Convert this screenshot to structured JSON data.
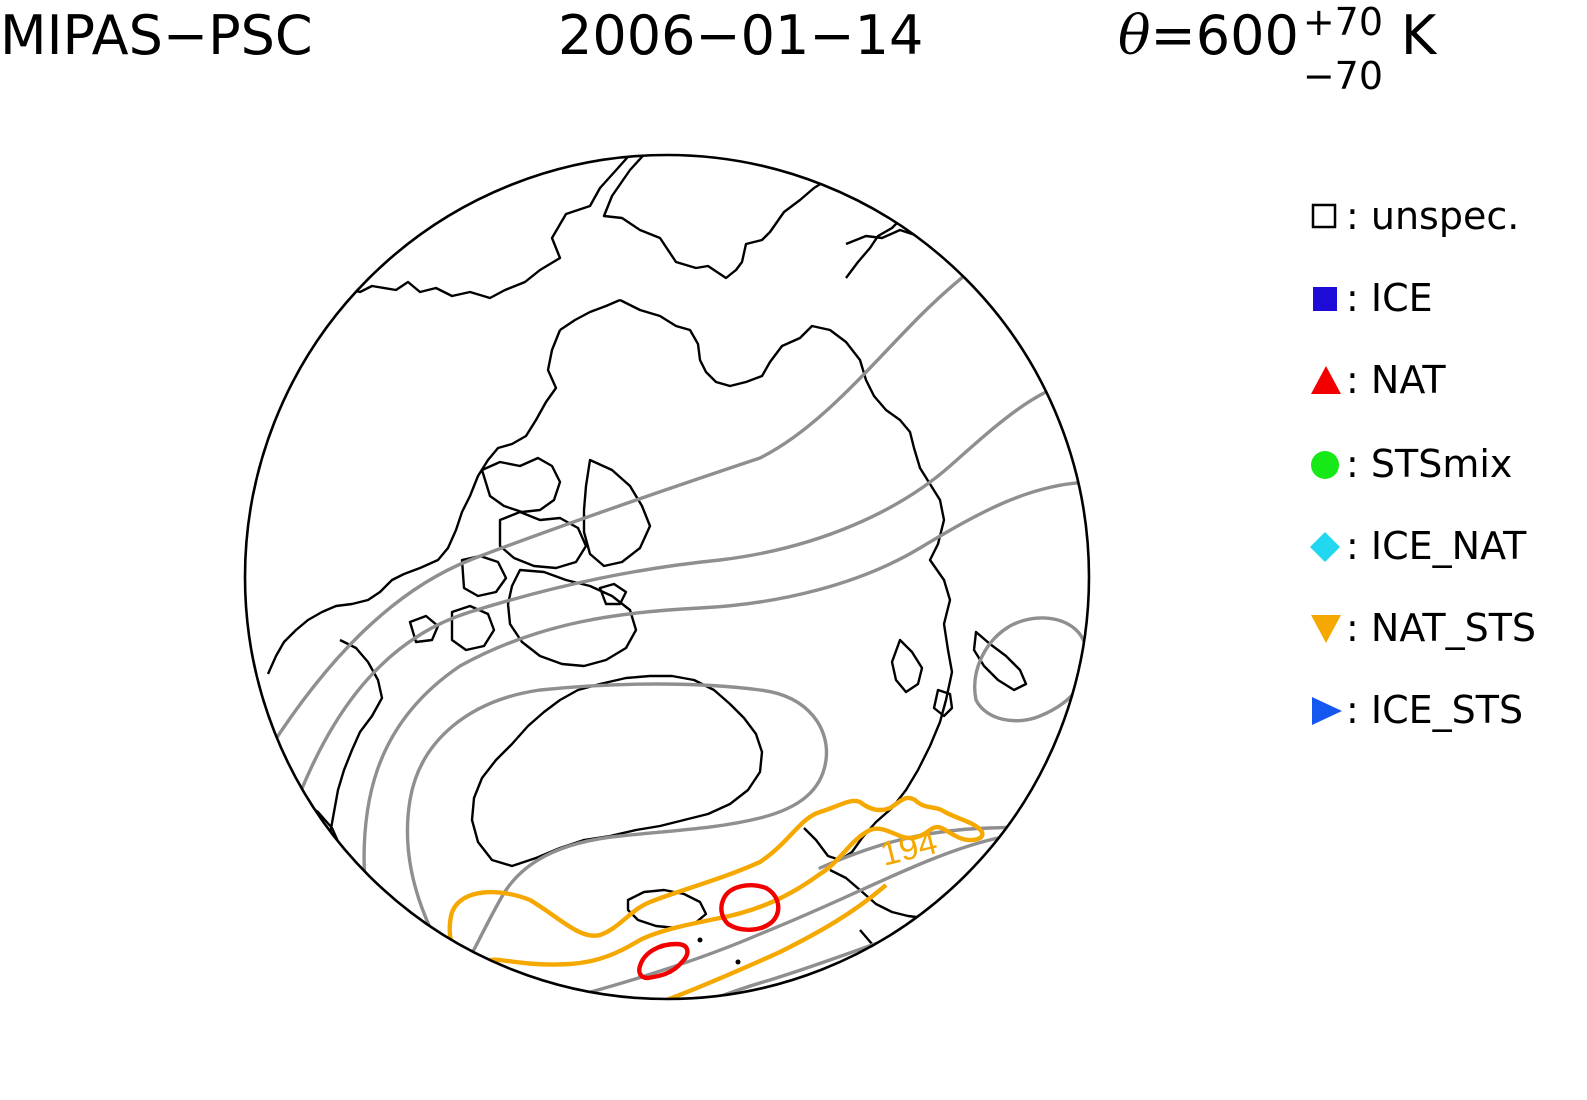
{
  "header": {
    "product": "MIPAS−PSC",
    "date": "2006−01−14",
    "theta_symbol": "θ",
    "theta_value": "=600",
    "theta_upper": "+70",
    "theta_lower": "−70",
    "theta_unit": "K"
  },
  "legend": [
    {
      "label": "unspec.",
      "symbol": "open-square",
      "color": "#000000"
    },
    {
      "label": "ICE",
      "symbol": "filled-square",
      "color": "#1e0bd8"
    },
    {
      "label": "NAT",
      "symbol": "triangle-up",
      "color": "#f20000"
    },
    {
      "label": "STSmix",
      "symbol": "circle",
      "color": "#17e817"
    },
    {
      "label": "ICE_NAT",
      "symbol": "diamond",
      "color": "#22d8f0"
    },
    {
      "label": "NAT_STS",
      "symbol": "triangle-down",
      "color": "#f5a800"
    },
    {
      "label": "ICE_STS",
      "symbol": "triangle-right",
      "color": "#1458f0"
    }
  ],
  "map": {
    "projection": "north polar stereographic",
    "contour_label": "194",
    "colors": {
      "coast": "#000000",
      "isoline": "#8f8f8f",
      "nat_sts_contour": "#f5a800",
      "nat_contour": "#f20000"
    }
  }
}
